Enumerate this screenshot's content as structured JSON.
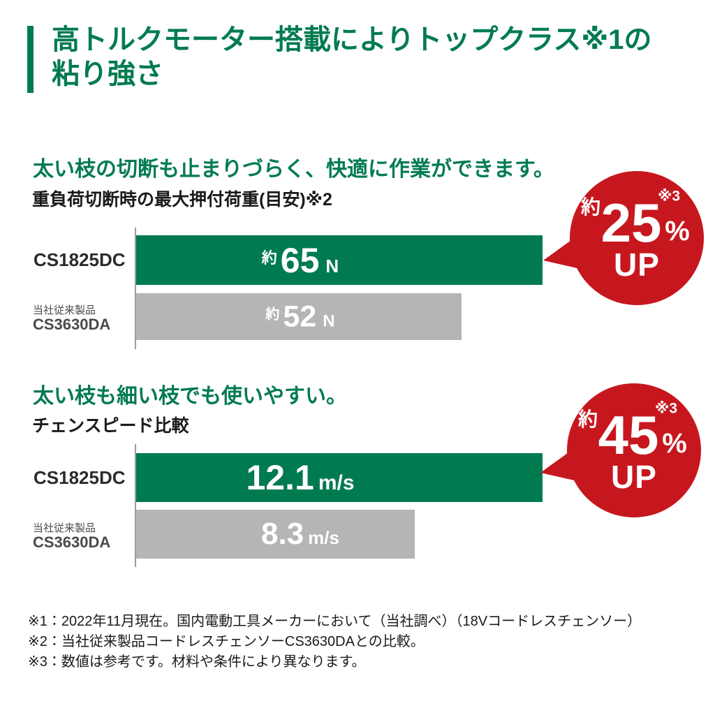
{
  "colors": {
    "green": "#007b4f",
    "gray_bar": "#b5b5b5",
    "red": "#c7171e",
    "axis": "#9b9b9b",
    "text_dark": "#1a1a1a",
    "text_muted": "#4a4a4a"
  },
  "header": {
    "title": "高トルクモーター搭載によりトップクラス※1の\n粘り強さ"
  },
  "sections": [
    {
      "headline": "太い枝の切断も止まりづらく、快適に作業ができます。",
      "labels": {
        "new_model": "CS1825DC",
        "old_model_note": "当社従来製品",
        "old_model": "CS3630DA"
      }
    },
    {
      "headline": "太い枝も細い枝でも使いやすい。",
      "labels": {
        "new_model": "CS1825DC",
        "old_model_note": "当社従来製品",
        "old_model": "CS3630DA"
      }
    }
  ],
  "chart_data": [
    {
      "type": "bar",
      "orientation": "horizontal",
      "title": "重負荷切断時の最大押付荷重(目安)※2",
      "categories": [
        "CS1825DC",
        "当社従来製品 CS3630DA"
      ],
      "values": [
        65,
        52
      ],
      "value_prefix": "約",
      "unit": "N",
      "value_display": [
        "約65N",
        "約52N"
      ],
      "bar_colors": [
        "#007b4f",
        "#b5b5b5"
      ],
      "badge": {
        "prefix": "約",
        "value": 25,
        "unit": "%",
        "note": "※3",
        "label": "UP"
      }
    },
    {
      "type": "bar",
      "orientation": "horizontal",
      "title": "チェンスピード比較",
      "categories": [
        "CS1825DC",
        "当社従来製品 CS3630DA"
      ],
      "values": [
        12.1,
        8.3
      ],
      "unit": "m/s",
      "value_display": [
        "12.1m/s",
        "8.3m/s"
      ],
      "bar_colors": [
        "#007b4f",
        "#b5b5b5"
      ],
      "badge": {
        "prefix": "約",
        "value": 45,
        "unit": "%",
        "note": "※3",
        "label": "UP"
      }
    }
  ],
  "footnotes": [
    "※1：2022年11月現在。国内電動工具メーカーにおいて（当社調べ）（18Vコードレスチェンソー）",
    "※2：当社従来製品コードレスチェンソーCS3630DAとの比較。",
    "※3：数値は参考です。材料や条件により異なります。"
  ]
}
